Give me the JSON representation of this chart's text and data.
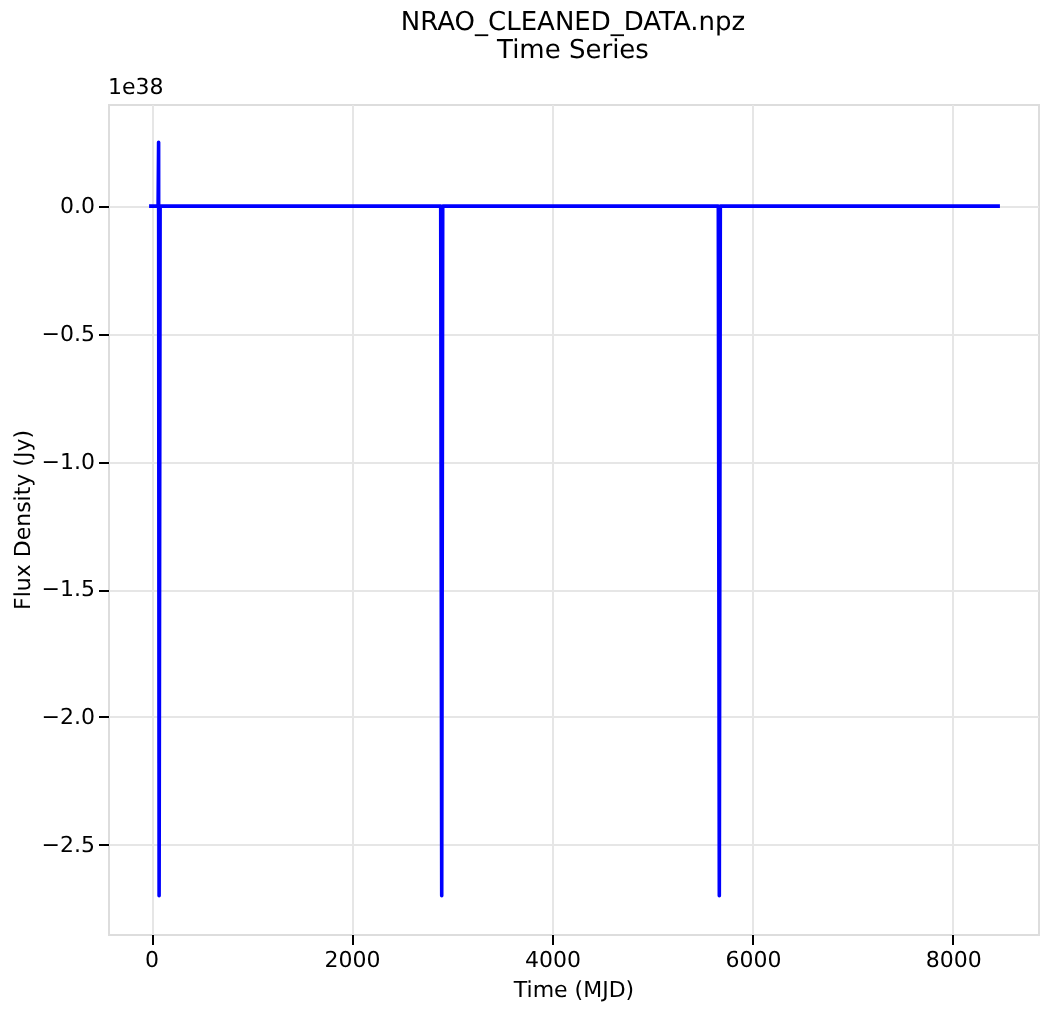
{
  "chart_data": {
    "type": "line",
    "title": "NRAO_CLEANED_DATA.npz",
    "subtitle": "Time Series",
    "xlabel": "Time (MJD)",
    "ylabel": "Flux Density (Jy)",
    "annotations": [
      "1e38"
    ],
    "series": [
      {
        "color": "#0000ff",
        "x": [
          -20,
          70,
          75,
          80,
          90,
          2890,
          2900,
          2910,
          5660,
          5670,
          5680,
          8470
        ],
        "values": [
          0,
          0,
          0.25,
          -2.7,
          0,
          0,
          -2.7,
          0,
          0,
          -2.7,
          0,
          0
        ]
      }
    ],
    "xlim": [
      -430,
      8850
    ],
    "ylim": [
      -2.85,
      0.4
    ],
    "xticks": [
      0,
      2000,
      4000,
      6000,
      8000
    ],
    "yticks": [
      {
        "value": -2.5,
        "label": "−2.5"
      },
      {
        "value": -2.0,
        "label": "−2.0"
      },
      {
        "value": -1.5,
        "label": "−1.5"
      },
      {
        "value": -1.0,
        "label": "−1.0"
      },
      {
        "value": -0.5,
        "label": "−0.5"
      },
      {
        "value": 0,
        "label": "0.0"
      }
    ],
    "grid": true,
    "marker": "none",
    "line_style": "solid"
  }
}
